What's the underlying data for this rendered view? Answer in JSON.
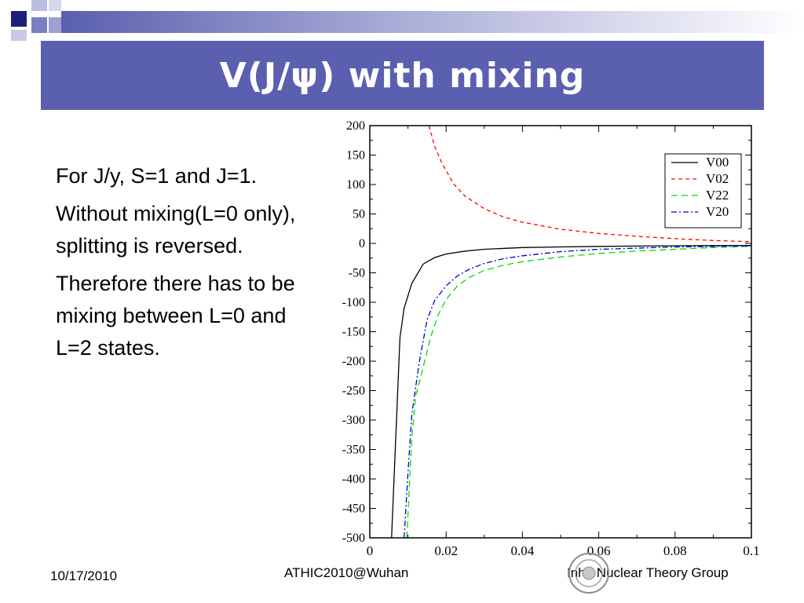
{
  "slide": {
    "title": "V(J/ψ) with mixing",
    "bullets": [
      "For J/y, S=1 and J=1.",
      "Without mixing(L=0 only), splitting is reversed.",
      "Therefore there has to be mixing between L=0 and L=2 states."
    ],
    "footer": {
      "date": "10/17/2010",
      "center": "ATHIC2010@Wuhan",
      "right": "Inha Nuclear Theory Group"
    },
    "colors": {
      "title_bar": "#5b5fb0",
      "deco_dark": "#1a1f7a",
      "deco_light": "#b9bde0"
    }
  },
  "chart_data": {
    "type": "line",
    "title": "",
    "xlabel": "",
    "ylabel": "",
    "xlim": [
      0,
      0.1
    ],
    "ylim": [
      -500,
      200
    ],
    "xticks": [
      0,
      0.02,
      0.04,
      0.06,
      0.08,
      0.1
    ],
    "xtick_labels": [
      "0",
      "0.02",
      "0.04",
      "0.06",
      "0.08",
      "0.1"
    ],
    "yticks": [
      200,
      150,
      100,
      50,
      0,
      -50,
      -100,
      -150,
      -200,
      -250,
      -300,
      -350,
      -400,
      -450,
      -500
    ],
    "ytick_labels": [
      "200",
      "150",
      "100",
      "50",
      "0",
      "-50",
      "-100",
      "-150",
      "-200",
      "-250",
      "-300",
      "-350",
      "-400",
      "-450",
      "-500"
    ],
    "grid": false,
    "legend": "top-right",
    "series": [
      {
        "name": "V00",
        "color": "#000000",
        "dash": "",
        "x": [
          0.0057,
          0.007,
          0.0079,
          0.009,
          0.011,
          0.014,
          0.017,
          0.02,
          0.025,
          0.03,
          0.04,
          0.05,
          0.06,
          0.07,
          0.08,
          0.09,
          0.1
        ],
        "y": [
          -500,
          -300,
          -160,
          -110,
          -68,
          -35,
          -24,
          -18,
          -13,
          -10,
          -7,
          -6,
          -5,
          -4.5,
          -4,
          -3.8,
          -3.5
        ]
      },
      {
        "name": "V02",
        "color": "#ff0000",
        "dash": "5,4",
        "x": [
          0.0155,
          0.017,
          0.019,
          0.022,
          0.025,
          0.03,
          0.035,
          0.04,
          0.05,
          0.06,
          0.07,
          0.08,
          0.09,
          0.1
        ],
        "y": [
          200,
          165,
          135,
          101,
          80,
          59,
          45,
          36,
          24,
          17,
          12,
          8,
          5,
          3
        ]
      },
      {
        "name": "V22",
        "color": "#00dd00",
        "dash": "8,5",
        "x": [
          0.0097,
          0.011,
          0.012,
          0.014,
          0.016,
          0.018,
          0.02,
          0.023,
          0.026,
          0.03,
          0.035,
          0.04,
          0.05,
          0.06,
          0.07,
          0.08,
          0.09,
          0.1
        ],
        "y": [
          -500,
          -330,
          -260,
          -210,
          -158,
          -120,
          -95,
          -72,
          -58,
          -46,
          -37,
          -31,
          -23,
          -17,
          -13,
          -10,
          -7,
          -5
        ]
      },
      {
        "name": "V20",
        "color": "#0000cc",
        "dash": "7,3,2,3",
        "x": [
          0.009,
          0.01,
          0.011,
          0.013,
          0.015,
          0.017,
          0.02,
          0.023,
          0.026,
          0.03,
          0.035,
          0.04,
          0.05,
          0.06,
          0.07,
          0.08,
          0.09,
          0.1
        ],
        "y": [
          -500,
          -390,
          -290,
          -200,
          -130,
          -97,
          -72,
          -55,
          -44,
          -34,
          -26,
          -21,
          -14,
          -10,
          -8,
          -6,
          -5,
          -4
        ]
      }
    ]
  }
}
